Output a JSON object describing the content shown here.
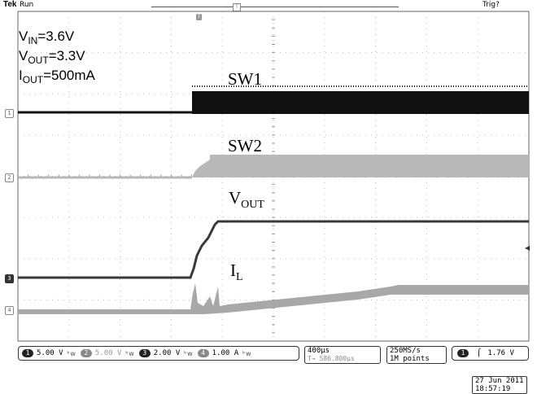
{
  "header": {
    "brand": "Tek",
    "mode": "Run",
    "trigger_state": "Trig?"
  },
  "conditions": {
    "vin": "3.6V",
    "vout": "3.3V",
    "iout": "500mA"
  },
  "traces": [
    {
      "label": "SW1",
      "marker": "1",
      "color": "#111111"
    },
    {
      "label": "SW2",
      "marker": "2",
      "color": "#b8b8b8"
    },
    {
      "label": "V",
      "label_sub": "OUT",
      "marker": "3",
      "color": "#3a3a3a"
    },
    {
      "label": "I",
      "label_sub": "L",
      "marker": "4",
      "color": "#a8a8a8"
    }
  ],
  "channels": [
    {
      "id": "1",
      "scale": "5.00 V"
    },
    {
      "id": "2",
      "scale": "5.00 V"
    },
    {
      "id": "3",
      "scale": "2.00 V"
    },
    {
      "id": "4",
      "scale": "1.00 A"
    }
  ],
  "bw_mark": "ᵇ𝗐",
  "timebase": {
    "per_div": "400µs",
    "position": "586.800µs"
  },
  "acquisition": {
    "rate": "250MS/s",
    "points": "1M points"
  },
  "trigger": {
    "channel": "1",
    "level": "1.76 V"
  },
  "timestamp": {
    "date": "27 Jun 2011",
    "time": "18:57:19"
  }
}
